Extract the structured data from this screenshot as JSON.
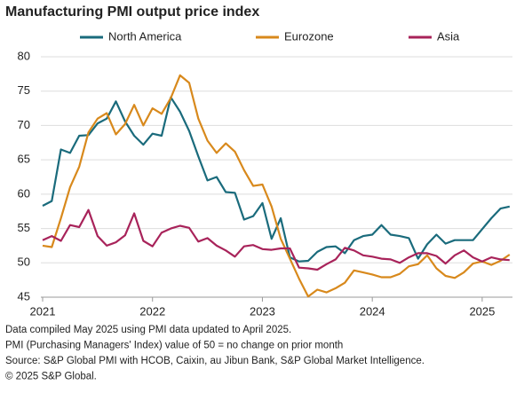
{
  "chart_data": {
    "type": "line",
    "title": "Manufacturing PMI output price index",
    "categories": [
      "2021",
      null,
      null,
      null,
      null,
      null,
      null,
      null,
      null,
      null,
      null,
      null,
      "2022",
      null,
      null,
      null,
      null,
      null,
      null,
      null,
      null,
      null,
      null,
      null,
      "2023",
      null,
      null,
      null,
      null,
      null,
      null,
      null,
      null,
      null,
      null,
      null,
      "2024",
      null,
      null,
      null,
      null,
      null,
      null,
      null,
      null,
      null,
      null,
      null,
      "2025",
      null,
      null,
      null
    ],
    "series": [
      {
        "name": "North America",
        "color": "#1a6b7c",
        "values": [
          58.3,
          59,
          66.5,
          66,
          68.5,
          68.6,
          70.3,
          71,
          73.5,
          70.6,
          68.5,
          67.2,
          68.8,
          68.5,
          74.1,
          72,
          69.2,
          65.5,
          62,
          62.5,
          60.3,
          60.2,
          56.3,
          56.8,
          58.7,
          53.5,
          56.5,
          50.8,
          50.2,
          50.3,
          51.6,
          52.3,
          52.4,
          51.4,
          53.3,
          53.9,
          54.1,
          55.5,
          54.1,
          53.9,
          53.6,
          50.6,
          52.7,
          54.1,
          52.8,
          53.3,
          53.3,
          53.3,
          54.9,
          56.5,
          57.9,
          58.2
        ]
      },
      {
        "name": "Eurozone",
        "color": "#d8891c",
        "values": [
          52.5,
          52.3,
          56.5,
          61,
          64,
          69,
          71,
          71.8,
          68.7,
          70.2,
          73,
          70,
          72.5,
          71.7,
          74,
          77.3,
          76.2,
          71,
          67.8,
          66,
          67.4,
          66.2,
          63.5,
          61.2,
          61.4,
          58.2,
          53.5,
          50.6,
          47.7,
          45.1,
          46.1,
          45.7,
          46.3,
          47.1,
          48.9,
          48.6,
          48.3,
          47.9,
          47.9,
          48.4,
          49.5,
          49.8,
          51.1,
          49.2,
          48.1,
          47.8,
          48.6,
          49.9,
          50.2,
          49.7,
          50.3,
          51.2
        ]
      },
      {
        "name": "Asia",
        "color": "#a8235a",
        "values": [
          53.3,
          53.9,
          53.2,
          55.5,
          55.2,
          57.7,
          53.9,
          52.5,
          53,
          54,
          57.2,
          53.2,
          52.4,
          54.4,
          55,
          55.4,
          55.1,
          53.1,
          53.6,
          52.5,
          51.8,
          50.9,
          52.4,
          52.6,
          52,
          51.9,
          52.1,
          52.1,
          49.3,
          49.2,
          49,
          49.8,
          50.5,
          52.2,
          51.8,
          51.1,
          50.9,
          50.6,
          50.5,
          50,
          50.8,
          51.4,
          51.4,
          51,
          49.9,
          51.1,
          51.8,
          50.8,
          50.2,
          50.8,
          50.5,
          50.4
        ]
      }
    ],
    "ylim": [
      45,
      80
    ],
    "yticks": [
      45,
      50,
      55,
      60,
      65,
      70,
      75,
      80
    ],
    "grid": true,
    "legend": "top",
    "notes": [
      "Data compiled May 2025 using PMI data updated to April 2025.",
      "PMI (Purchasing Managers' Index) value of 50 = no change on prior month",
      "Source: S&P Global PMI with HCOB, Caixin, au Jibun Bank, S&P Global Market Intelligence.",
      "© 2025 S&P Global."
    ]
  }
}
